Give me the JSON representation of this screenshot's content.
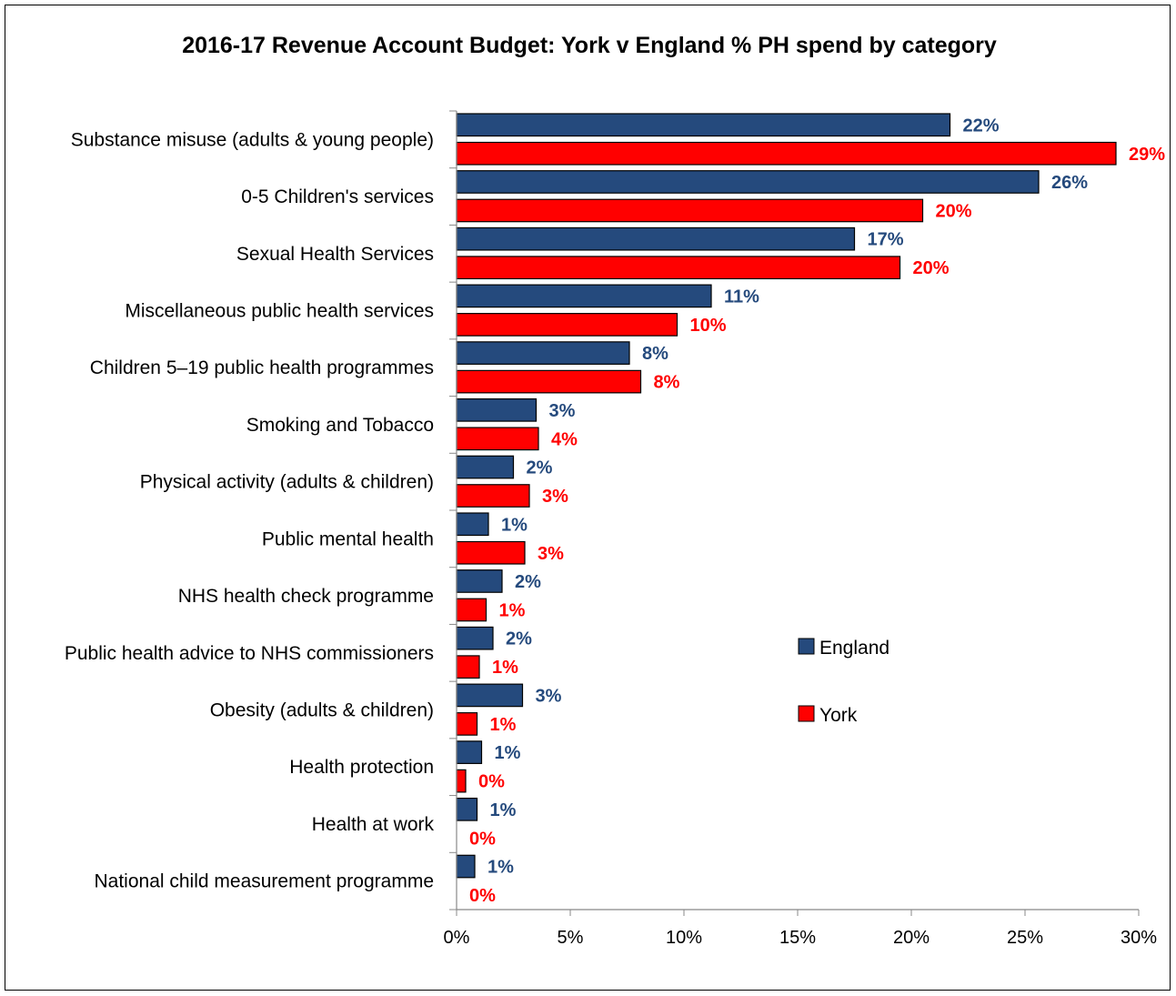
{
  "chart_data": {
    "type": "bar",
    "orientation": "horizontal",
    "title": "2016-17 Revenue Account Budget: York v England % PH spend by category",
    "categories": [
      "Substance misuse (adults & young people)",
      "0-5 Children's services",
      "Sexual Health Services",
      "Miscellaneous public health services",
      "Children 5–19 public health programmes",
      "Smoking and Tobacco",
      "Physical activity (adults & children)",
      "Public mental health",
      "NHS health check programme",
      "Public health advice to NHS commissioners",
      "Obesity (adults & children)",
      "Health protection",
      "Health at work",
      "National child measurement programme"
    ],
    "series": [
      {
        "name": "England",
        "color": "#254a7d",
        "values": [
          21.7,
          25.6,
          17.5,
          11.2,
          7.6,
          3.5,
          2.5,
          1.4,
          2.0,
          1.6,
          2.9,
          1.1,
          0.9,
          0.8
        ],
        "labels": [
          "22%",
          "26%",
          "17%",
          "11%",
          "8%",
          "3%",
          "2%",
          "1%",
          "2%",
          "2%",
          "3%",
          "1%",
          "1%",
          "1%"
        ]
      },
      {
        "name": "York",
        "color": "#ff0000",
        "values": [
          29.0,
          20.5,
          19.5,
          9.7,
          8.1,
          3.6,
          3.2,
          3.0,
          1.3,
          1.0,
          0.9,
          0.4,
          0.0,
          0.0
        ],
        "labels": [
          "29%",
          "20%",
          "20%",
          "10%",
          "8%",
          "4%",
          "3%",
          "3%",
          "1%",
          "1%",
          "1%",
          "0%",
          "0%",
          "0%"
        ]
      }
    ],
    "xlim": [
      0,
      30
    ],
    "xticks": [
      0,
      5,
      10,
      15,
      20,
      25,
      30
    ],
    "xtick_labels": [
      "0%",
      "5%",
      "10%",
      "15%",
      "20%",
      "25%",
      "30%"
    ],
    "xlabel": "",
    "ylabel": "",
    "grid": false,
    "legend_position": "right-middle",
    "label_colors": {
      "England": "#254a7d",
      "York": "#ff0000"
    }
  }
}
